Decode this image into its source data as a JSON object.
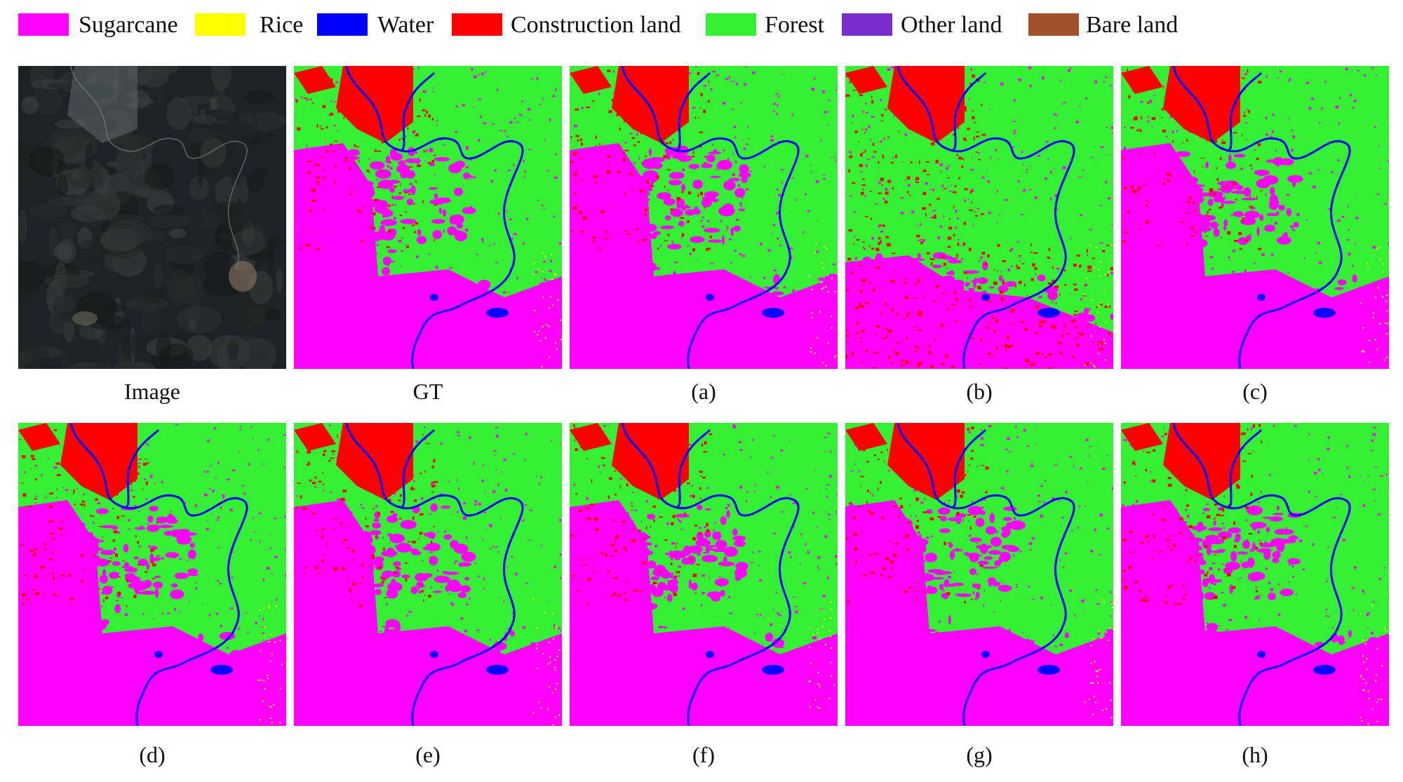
{
  "legend": {
    "items": [
      {
        "label": "Sugarcane",
        "color": "#ff00ff"
      },
      {
        "label": "Rice",
        "color": "#ffff00"
      },
      {
        "label": "Water",
        "color": "#0000ff"
      },
      {
        "label": "Construction land",
        "color": "#ff0000"
      },
      {
        "label": "Forest",
        "color": "#33f033"
      },
      {
        "label": "Other land",
        "color": "#7b2ccc"
      },
      {
        "label": "Bare land",
        "color": "#a0522d"
      }
    ]
  },
  "panels": [
    {
      "caption": "Image",
      "kind": "satellite-image"
    },
    {
      "caption": "GT",
      "kind": "classification-map"
    },
    {
      "caption": "(a)",
      "kind": "classification-map"
    },
    {
      "caption": "(b)",
      "kind": "classification-map-variant"
    },
    {
      "caption": "(c)",
      "kind": "classification-map"
    },
    {
      "caption": "(d)",
      "kind": "classification-map"
    },
    {
      "caption": "(e)",
      "kind": "classification-map"
    },
    {
      "caption": "(f)",
      "kind": "classification-map"
    },
    {
      "caption": "(g)",
      "kind": "classification-map"
    },
    {
      "caption": "(h)",
      "kind": "classification-map"
    }
  ]
}
